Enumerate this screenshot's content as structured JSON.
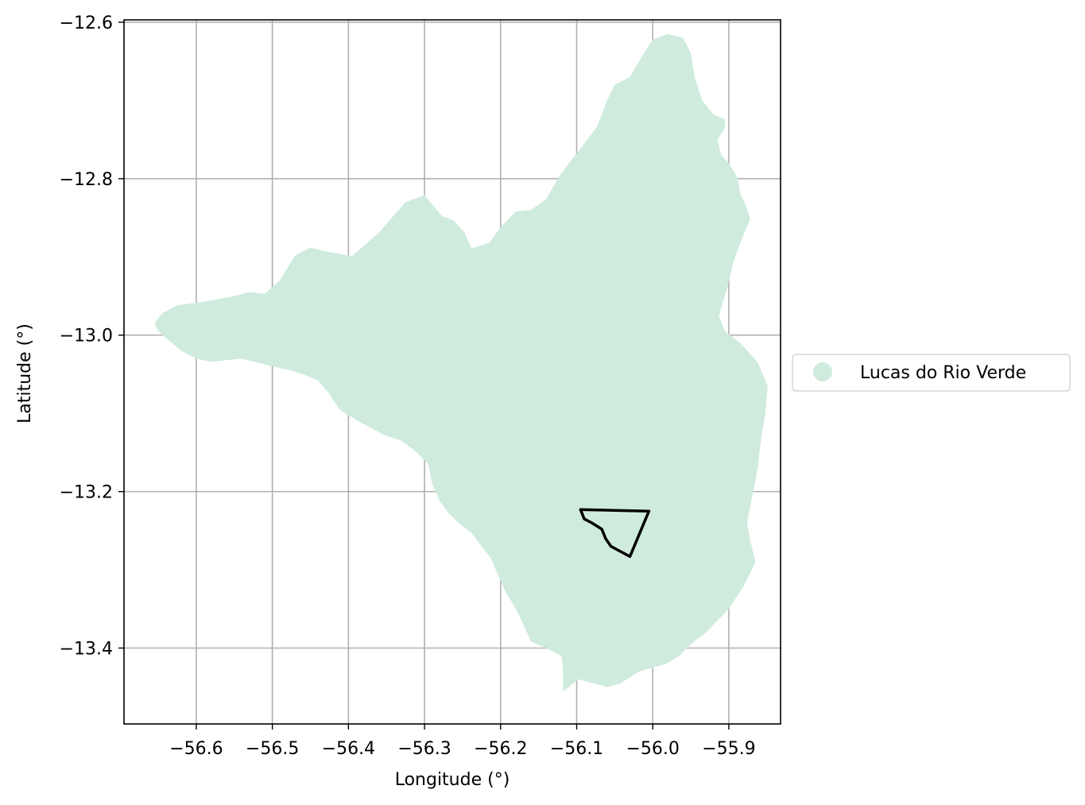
{
  "chart_data": {
    "type": "map",
    "xlabel": "Longitude (°)",
    "ylabel": "Latitude (°)",
    "xlim": [
      -56.695,
      -55.832
    ],
    "ylim": [
      -13.497,
      -12.597
    ],
    "x_ticks": [
      {
        "value": -56.6,
        "label": "−56.6"
      },
      {
        "value": -56.5,
        "label": "−56.5"
      },
      {
        "value": -56.4,
        "label": "−56.4"
      },
      {
        "value": -56.3,
        "label": "−56.3"
      },
      {
        "value": -56.2,
        "label": "−56.2"
      },
      {
        "value": -56.1,
        "label": "−56.1"
      },
      {
        "value": -56.0,
        "label": "−56.0"
      },
      {
        "value": -55.9,
        "label": "−55.9"
      }
    ],
    "y_ticks": [
      {
        "value": -12.6,
        "label": "−12.6"
      },
      {
        "value": -12.8,
        "label": "−12.8"
      },
      {
        "value": -13.0,
        "label": "−13.0"
      },
      {
        "value": -13.2,
        "label": "−13.2"
      },
      {
        "value": -13.4,
        "label": "−13.4"
      }
    ],
    "grid": true,
    "legend": {
      "placement": "right-outside",
      "entries": [
        "Lucas do Rio Verde"
      ]
    },
    "regions": [
      {
        "name": "Lucas do Rio Verde",
        "fill": "#cfebdd",
        "coords": [
          [
            -56.655,
            -12.985
          ],
          [
            -56.645,
            -12.972
          ],
          [
            -56.625,
            -12.962
          ],
          [
            -56.595,
            -12.958
          ],
          [
            -56.57,
            -12.954
          ],
          [
            -56.55,
            -12.95
          ],
          [
            -56.53,
            -12.945
          ],
          [
            -56.51,
            -12.947
          ],
          [
            -56.49,
            -12.93
          ],
          [
            -56.47,
            -12.898
          ],
          [
            -56.45,
            -12.888
          ],
          [
            -56.43,
            -12.893
          ],
          [
            -56.395,
            -12.899
          ],
          [
            -56.36,
            -12.869
          ],
          [
            -56.325,
            -12.83
          ],
          [
            -56.3,
            -12.821
          ],
          [
            -56.277,
            -12.848
          ],
          [
            -56.262,
            -12.853
          ],
          [
            -56.248,
            -12.868
          ],
          [
            -56.238,
            -12.889
          ],
          [
            -56.215,
            -12.882
          ],
          [
            -56.2,
            -12.862
          ],
          [
            -56.18,
            -12.842
          ],
          [
            -56.16,
            -12.84
          ],
          [
            -56.14,
            -12.826
          ],
          [
            -56.125,
            -12.8
          ],
          [
            -56.11,
            -12.78
          ],
          [
            -56.09,
            -12.755
          ],
          [
            -56.073,
            -12.733
          ],
          [
            -56.06,
            -12.7
          ],
          [
            -56.05,
            -12.68
          ],
          [
            -56.03,
            -12.67
          ],
          [
            -56.015,
            -12.645
          ],
          [
            -56.0,
            -12.622
          ],
          [
            -55.98,
            -12.615
          ],
          [
            -55.96,
            -12.62
          ],
          [
            -55.95,
            -12.64
          ],
          [
            -55.945,
            -12.67
          ],
          [
            -55.935,
            -12.7
          ],
          [
            -55.92,
            -12.718
          ],
          [
            -55.905,
            -12.724
          ],
          [
            -55.905,
            -12.735
          ],
          [
            -55.915,
            -12.75
          ],
          [
            -55.91,
            -12.77
          ],
          [
            -55.9,
            -12.78
          ],
          [
            -55.888,
            -12.8
          ],
          [
            -55.885,
            -12.82
          ],
          [
            -55.878,
            -12.833
          ],
          [
            -55.872,
            -12.852
          ],
          [
            -55.88,
            -12.87
          ],
          [
            -55.888,
            -12.89
          ],
          [
            -55.895,
            -12.91
          ],
          [
            -55.902,
            -12.94
          ],
          [
            -55.908,
            -12.958
          ],
          [
            -55.913,
            -12.975
          ],
          [
            -55.905,
            -12.995
          ],
          [
            -55.885,
            -13.01
          ],
          [
            -55.862,
            -13.035
          ],
          [
            -55.849,
            -13.065
          ],
          [
            -55.852,
            -13.1
          ],
          [
            -55.858,
            -13.135
          ],
          [
            -55.862,
            -13.17
          ],
          [
            -55.87,
            -13.21
          ],
          [
            -55.876,
            -13.24
          ],
          [
            -55.872,
            -13.262
          ],
          [
            -55.865,
            -13.29
          ],
          [
            -55.88,
            -13.32
          ],
          [
            -55.9,
            -13.35
          ],
          [
            -55.93,
            -13.38
          ],
          [
            -55.95,
            -13.395
          ],
          [
            -55.965,
            -13.41
          ],
          [
            -55.982,
            -13.42
          ],
          [
            -56.0,
            -13.425
          ],
          [
            -56.018,
            -13.43
          ],
          [
            -56.042,
            -13.445
          ],
          [
            -56.06,
            -13.45
          ],
          [
            -56.078,
            -13.445
          ],
          [
            -56.098,
            -13.44
          ],
          [
            -56.117,
            -13.455
          ],
          [
            -56.118,
            -13.455
          ],
          [
            -56.118,
            -13.425
          ],
          [
            -56.12,
            -13.41
          ],
          [
            -56.14,
            -13.4
          ],
          [
            -56.16,
            -13.392
          ],
          [
            -56.17,
            -13.37
          ],
          [
            -56.18,
            -13.35
          ],
          [
            -56.195,
            -13.325
          ],
          [
            -56.205,
            -13.303
          ],
          [
            -56.213,
            -13.285
          ],
          [
            -56.225,
            -13.27
          ],
          [
            -56.238,
            -13.253
          ],
          [
            -56.255,
            -13.24
          ],
          [
            -56.268,
            -13.228
          ],
          [
            -56.28,
            -13.212
          ],
          [
            -56.29,
            -13.19
          ],
          [
            -56.295,
            -13.165
          ],
          [
            -56.31,
            -13.15
          ],
          [
            -56.33,
            -13.135
          ],
          [
            -56.352,
            -13.128
          ],
          [
            -56.372,
            -13.118
          ],
          [
            -56.39,
            -13.108
          ],
          [
            -56.412,
            -13.095
          ],
          [
            -56.425,
            -13.075
          ],
          [
            -56.44,
            -13.058
          ],
          [
            -56.46,
            -13.05
          ],
          [
            -56.48,
            -13.044
          ],
          [
            -56.5,
            -13.04
          ],
          [
            -56.52,
            -13.035
          ],
          [
            -56.54,
            -13.03
          ],
          [
            -56.56,
            -13.032
          ],
          [
            -56.58,
            -13.034
          ],
          [
            -56.6,
            -13.03
          ],
          [
            -56.62,
            -13.02
          ],
          [
            -56.638,
            -13.005
          ],
          [
            -56.65,
            -12.995
          ],
          [
            -56.655,
            -12.985
          ]
        ]
      }
    ],
    "outline": {
      "stroke": "#000000",
      "coords": [
        [
          -56.095,
          -13.223
        ],
        [
          -56.005,
          -13.225
        ],
        [
          -56.03,
          -13.283
        ],
        [
          -56.055,
          -13.27
        ],
        [
          -56.062,
          -13.26
        ],
        [
          -56.067,
          -13.248
        ],
        [
          -56.08,
          -13.24
        ],
        [
          -56.09,
          -13.235
        ],
        [
          -56.095,
          -13.223
        ]
      ]
    }
  }
}
